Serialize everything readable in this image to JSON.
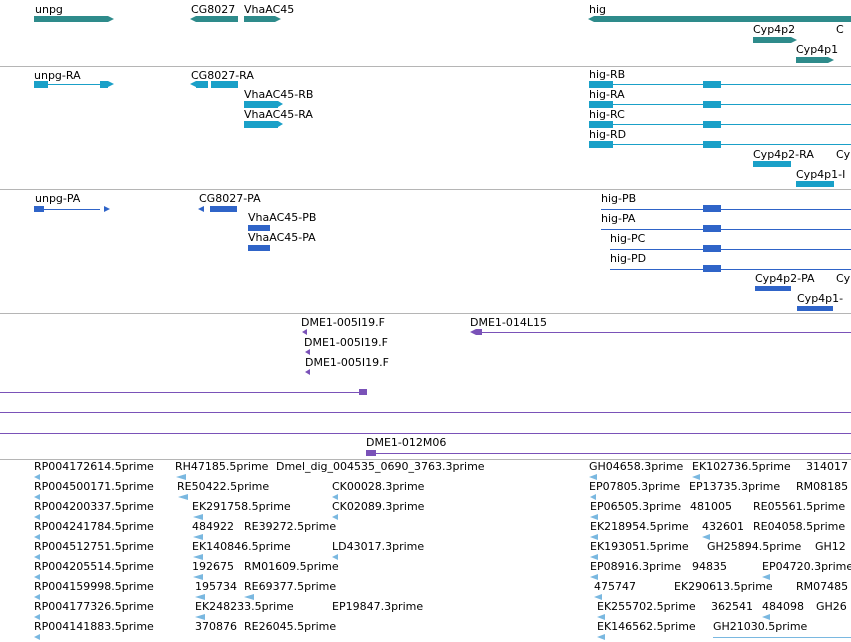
{
  "colors": {
    "gene": "#2e8b8b",
    "mrna": "#1aa0c8",
    "cds": "#2f64c8",
    "clone": "#7a52b8",
    "est": "#7ab8e0",
    "divider": "#b5b5b5"
  },
  "genes_track": {
    "labels": [
      "unpg",
      "CG8027",
      "VhaAC45",
      "hig",
      "Cyp4p2",
      "Cyp4p1"
    ]
  },
  "mrna_track": {
    "labels": [
      "unpg-RA",
      "CG8027-RA",
      "VhaAC45-RB",
      "VhaAC45-RA",
      "hig-RB",
      "hig-RA",
      "hig-RC",
      "hig-RD",
      "Cyp4p2-RA"
    ]
  },
  "cds_track": {
    "labels": [
      "unpg-PA",
      "CG8027-PA",
      "VhaAC45-PB",
      "VhaAC45-PA",
      "hig-PB",
      "hig-PA",
      "hig-PC",
      "hig-PD",
      "Cyp4p2-PA"
    ]
  },
  "clone_track": {
    "labels": [
      "DME1-005I19.F",
      "DME1-014L15",
      "DME1-005I19.F",
      "DME1-005I19.F",
      "DME1-012M06"
    ]
  },
  "est_track": {
    "labels": [
      "RP004172614.5prime",
      "RH47185.5prime",
      "Dmel_dig_004535_0690_3763.3prime",
      "GH04658.3prime",
      "EK102736.5prime",
      "314017",
      "RP004500171.5prime",
      "RE50422.5prime",
      "CK00028.3prime",
      "EP07805.3prime",
      "EP13735.3prime",
      "RM08185",
      "RP004200337.5prime",
      "EK291758.5prime",
      "CK02089.3prime",
      "EP06505.3prime",
      "481005",
      "RE05561.5prime",
      "RP004241784.5prime",
      "484922",
      "RE39272.5prime",
      "EK218954.5prime",
      "432601",
      "RE04058.5prime",
      "RP004512751.5prime",
      "EK140846.5prime",
      "LD43017.3prime",
      "EK193051.5prime",
      "GH25894.5prime",
      "GH12",
      "RP004205514.5prime",
      "192675",
      "RM01609.5prime",
      "EP08916.3prime",
      "94835",
      "EP04720.3prime",
      "RP004159998.5prime",
      "195734",
      "RE69377.5prime",
      "475747",
      "EK290613.5prime",
      "RM07485",
      "RP004177326.5prime",
      "EK248233.5prime",
      "EP19847.3prime",
      "EK255702.5prime",
      "362541",
      "484098",
      "GH26",
      "RP004141883.5prime",
      "370876",
      "RE26045.5prime",
      "EK146562.5prime",
      "GH21030.5prime"
    ]
  }
}
